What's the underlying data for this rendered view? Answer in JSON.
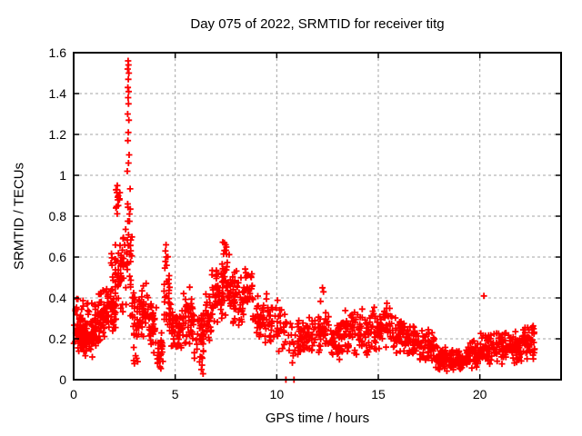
{
  "chart_data": {
    "type": "scatter",
    "title": "Day 075 of 2022, SRMTID for receiver titg",
    "marker": "plus",
    "marker_color": "#ff0000",
    "marker_size_px": 7,
    "background_color": "#ffffff",
    "border_color": "#000000",
    "grid": true,
    "grid_color": "#a6a6a6",
    "grid_style": "dashed",
    "legend": "none",
    "x_axis": {
      "label": "GPS time / hours",
      "range": [
        0,
        24
      ],
      "ticks": [
        {
          "value": 0,
          "label": "0"
        },
        {
          "value": 5,
          "label": "5"
        },
        {
          "value": 10,
          "label": "10"
        },
        {
          "value": 15,
          "label": "15"
        },
        {
          "value": 20,
          "label": "20"
        }
      ]
    },
    "y_axis": {
      "label": "SRMTID / TECUs",
      "range": [
        0,
        1.6
      ],
      "ticks": [
        {
          "value": 0,
          "label": "0"
        },
        {
          "value": 0.2,
          "label": "0.2"
        },
        {
          "value": 0.4,
          "label": "0.4"
        },
        {
          "value": 0.6,
          "label": "0.6"
        },
        {
          "value": 0.8,
          "label": "0.8"
        },
        {
          "value": 1,
          "label": "1"
        },
        {
          "value": 1.2,
          "label": "1.2"
        },
        {
          "value": 1.4,
          "label": "1.4"
        },
        {
          "value": 1.6,
          "label": "1.6"
        }
      ]
    },
    "series_name": "SRMTID",
    "bands_format": "each band = [t_start_hours, t_end_hours, value_min_TECUs, value_max_TECUs, point_count]",
    "density_bands": [
      [
        0.0,
        0.5,
        0.13,
        0.33,
        60
      ],
      [
        0.0,
        0.5,
        0.3,
        0.45,
        8
      ],
      [
        0.5,
        1.0,
        0.1,
        0.3,
        60
      ],
      [
        0.5,
        1.0,
        0.28,
        0.4,
        6
      ],
      [
        1.0,
        1.6,
        0.15,
        0.4,
        60
      ],
      [
        1.2,
        1.5,
        0.38,
        0.48,
        5
      ],
      [
        1.6,
        2.1,
        0.2,
        0.48,
        50
      ],
      [
        1.8,
        2.1,
        0.45,
        0.62,
        8
      ],
      [
        2.05,
        2.35,
        0.3,
        0.7,
        25
      ],
      [
        2.05,
        2.3,
        0.8,
        0.95,
        9
      ],
      [
        2.3,
        2.6,
        0.3,
        0.8,
        22
      ],
      [
        2.6,
        2.88,
        0.3,
        1.0,
        30
      ],
      [
        2.88,
        3.3,
        0.15,
        0.45,
        35
      ],
      [
        2.95,
        3.2,
        0.05,
        0.15,
        5
      ],
      [
        3.3,
        3.7,
        0.18,
        0.5,
        30
      ],
      [
        3.7,
        4.1,
        0.12,
        0.4,
        35
      ],
      [
        4.1,
        4.4,
        0.03,
        0.25,
        25
      ],
      [
        4.4,
        4.8,
        0.18,
        0.55,
        30
      ],
      [
        4.45,
        4.65,
        0.52,
        0.64,
        5
      ],
      [
        4.8,
        5.4,
        0.13,
        0.35,
        50
      ],
      [
        5.4,
        5.9,
        0.15,
        0.47,
        40
      ],
      [
        5.9,
        6.4,
        0.08,
        0.35,
        35
      ],
      [
        6.2,
        6.4,
        0.02,
        0.1,
        4
      ],
      [
        6.4,
        6.8,
        0.15,
        0.45,
        30
      ],
      [
        6.8,
        7.3,
        0.25,
        0.58,
        45
      ],
      [
        7.3,
        7.8,
        0.28,
        0.62,
        45
      ],
      [
        7.3,
        7.6,
        0.6,
        0.68,
        6
      ],
      [
        7.8,
        8.3,
        0.25,
        0.55,
        40
      ],
      [
        8.3,
        8.8,
        0.28,
        0.55,
        35
      ],
      [
        8.8,
        9.4,
        0.18,
        0.42,
        40
      ],
      [
        9.4,
        9.8,
        0.15,
        0.4,
        25
      ],
      [
        9.8,
        10.4,
        0.1,
        0.42,
        25
      ],
      [
        10.4,
        11.0,
        0.04,
        0.3,
        18
      ],
      [
        11.0,
        12.1,
        0.1,
        0.32,
        70
      ],
      [
        12.1,
        12.5,
        0.12,
        0.4,
        30
      ],
      [
        12.5,
        13.2,
        0.08,
        0.32,
        45
      ],
      [
        13.2,
        13.8,
        0.1,
        0.35,
        40
      ],
      [
        13.8,
        14.5,
        0.1,
        0.35,
        45
      ],
      [
        14.5,
        15.1,
        0.12,
        0.38,
        40
      ],
      [
        15.1,
        15.7,
        0.15,
        0.38,
        40
      ],
      [
        15.7,
        16.3,
        0.12,
        0.32,
        40
      ],
      [
        16.3,
        17.0,
        0.1,
        0.28,
        50
      ],
      [
        17.0,
        17.8,
        0.08,
        0.26,
        55
      ],
      [
        17.8,
        18.4,
        0.03,
        0.18,
        50
      ],
      [
        18.4,
        19.2,
        0.03,
        0.15,
        55
      ],
      [
        19.2,
        20.0,
        0.05,
        0.2,
        55
      ],
      [
        20.0,
        20.8,
        0.06,
        0.24,
        55
      ],
      [
        20.8,
        21.5,
        0.07,
        0.26,
        50
      ],
      [
        21.5,
        22.1,
        0.06,
        0.24,
        45
      ],
      [
        22.1,
        22.7,
        0.08,
        0.28,
        45
      ]
    ],
    "peak_points": [
      [
        2.68,
        1.56
      ],
      [
        2.7,
        1.54
      ],
      [
        2.66,
        1.52
      ],
      [
        2.72,
        1.5
      ],
      [
        2.69,
        1.47
      ],
      [
        2.67,
        1.43
      ],
      [
        2.71,
        1.41
      ],
      [
        2.68,
        1.38
      ],
      [
        2.7,
        1.35
      ],
      [
        2.66,
        1.3
      ],
      [
        2.72,
        1.27
      ],
      [
        2.69,
        1.21
      ],
      [
        2.67,
        1.17
      ],
      [
        2.73,
        1.1
      ],
      [
        2.7,
        1.06
      ],
      [
        2.64,
        1.02
      ],
      [
        2.15,
        0.95
      ],
      [
        2.12,
        0.93
      ],
      [
        2.2,
        0.9
      ],
      [
        2.25,
        0.88
      ],
      [
        2.08,
        0.84
      ],
      [
        4.55,
        0.66
      ],
      [
        4.52,
        0.63
      ],
      [
        7.42,
        0.67
      ],
      [
        7.48,
        0.66
      ],
      [
        9.5,
        0.42
      ],
      [
        12.25,
        0.45
      ],
      [
        12.3,
        0.43
      ],
      [
        20.2,
        0.41
      ],
      [
        10.45,
        0.0
      ],
      [
        10.85,
        0.0
      ]
    ]
  }
}
